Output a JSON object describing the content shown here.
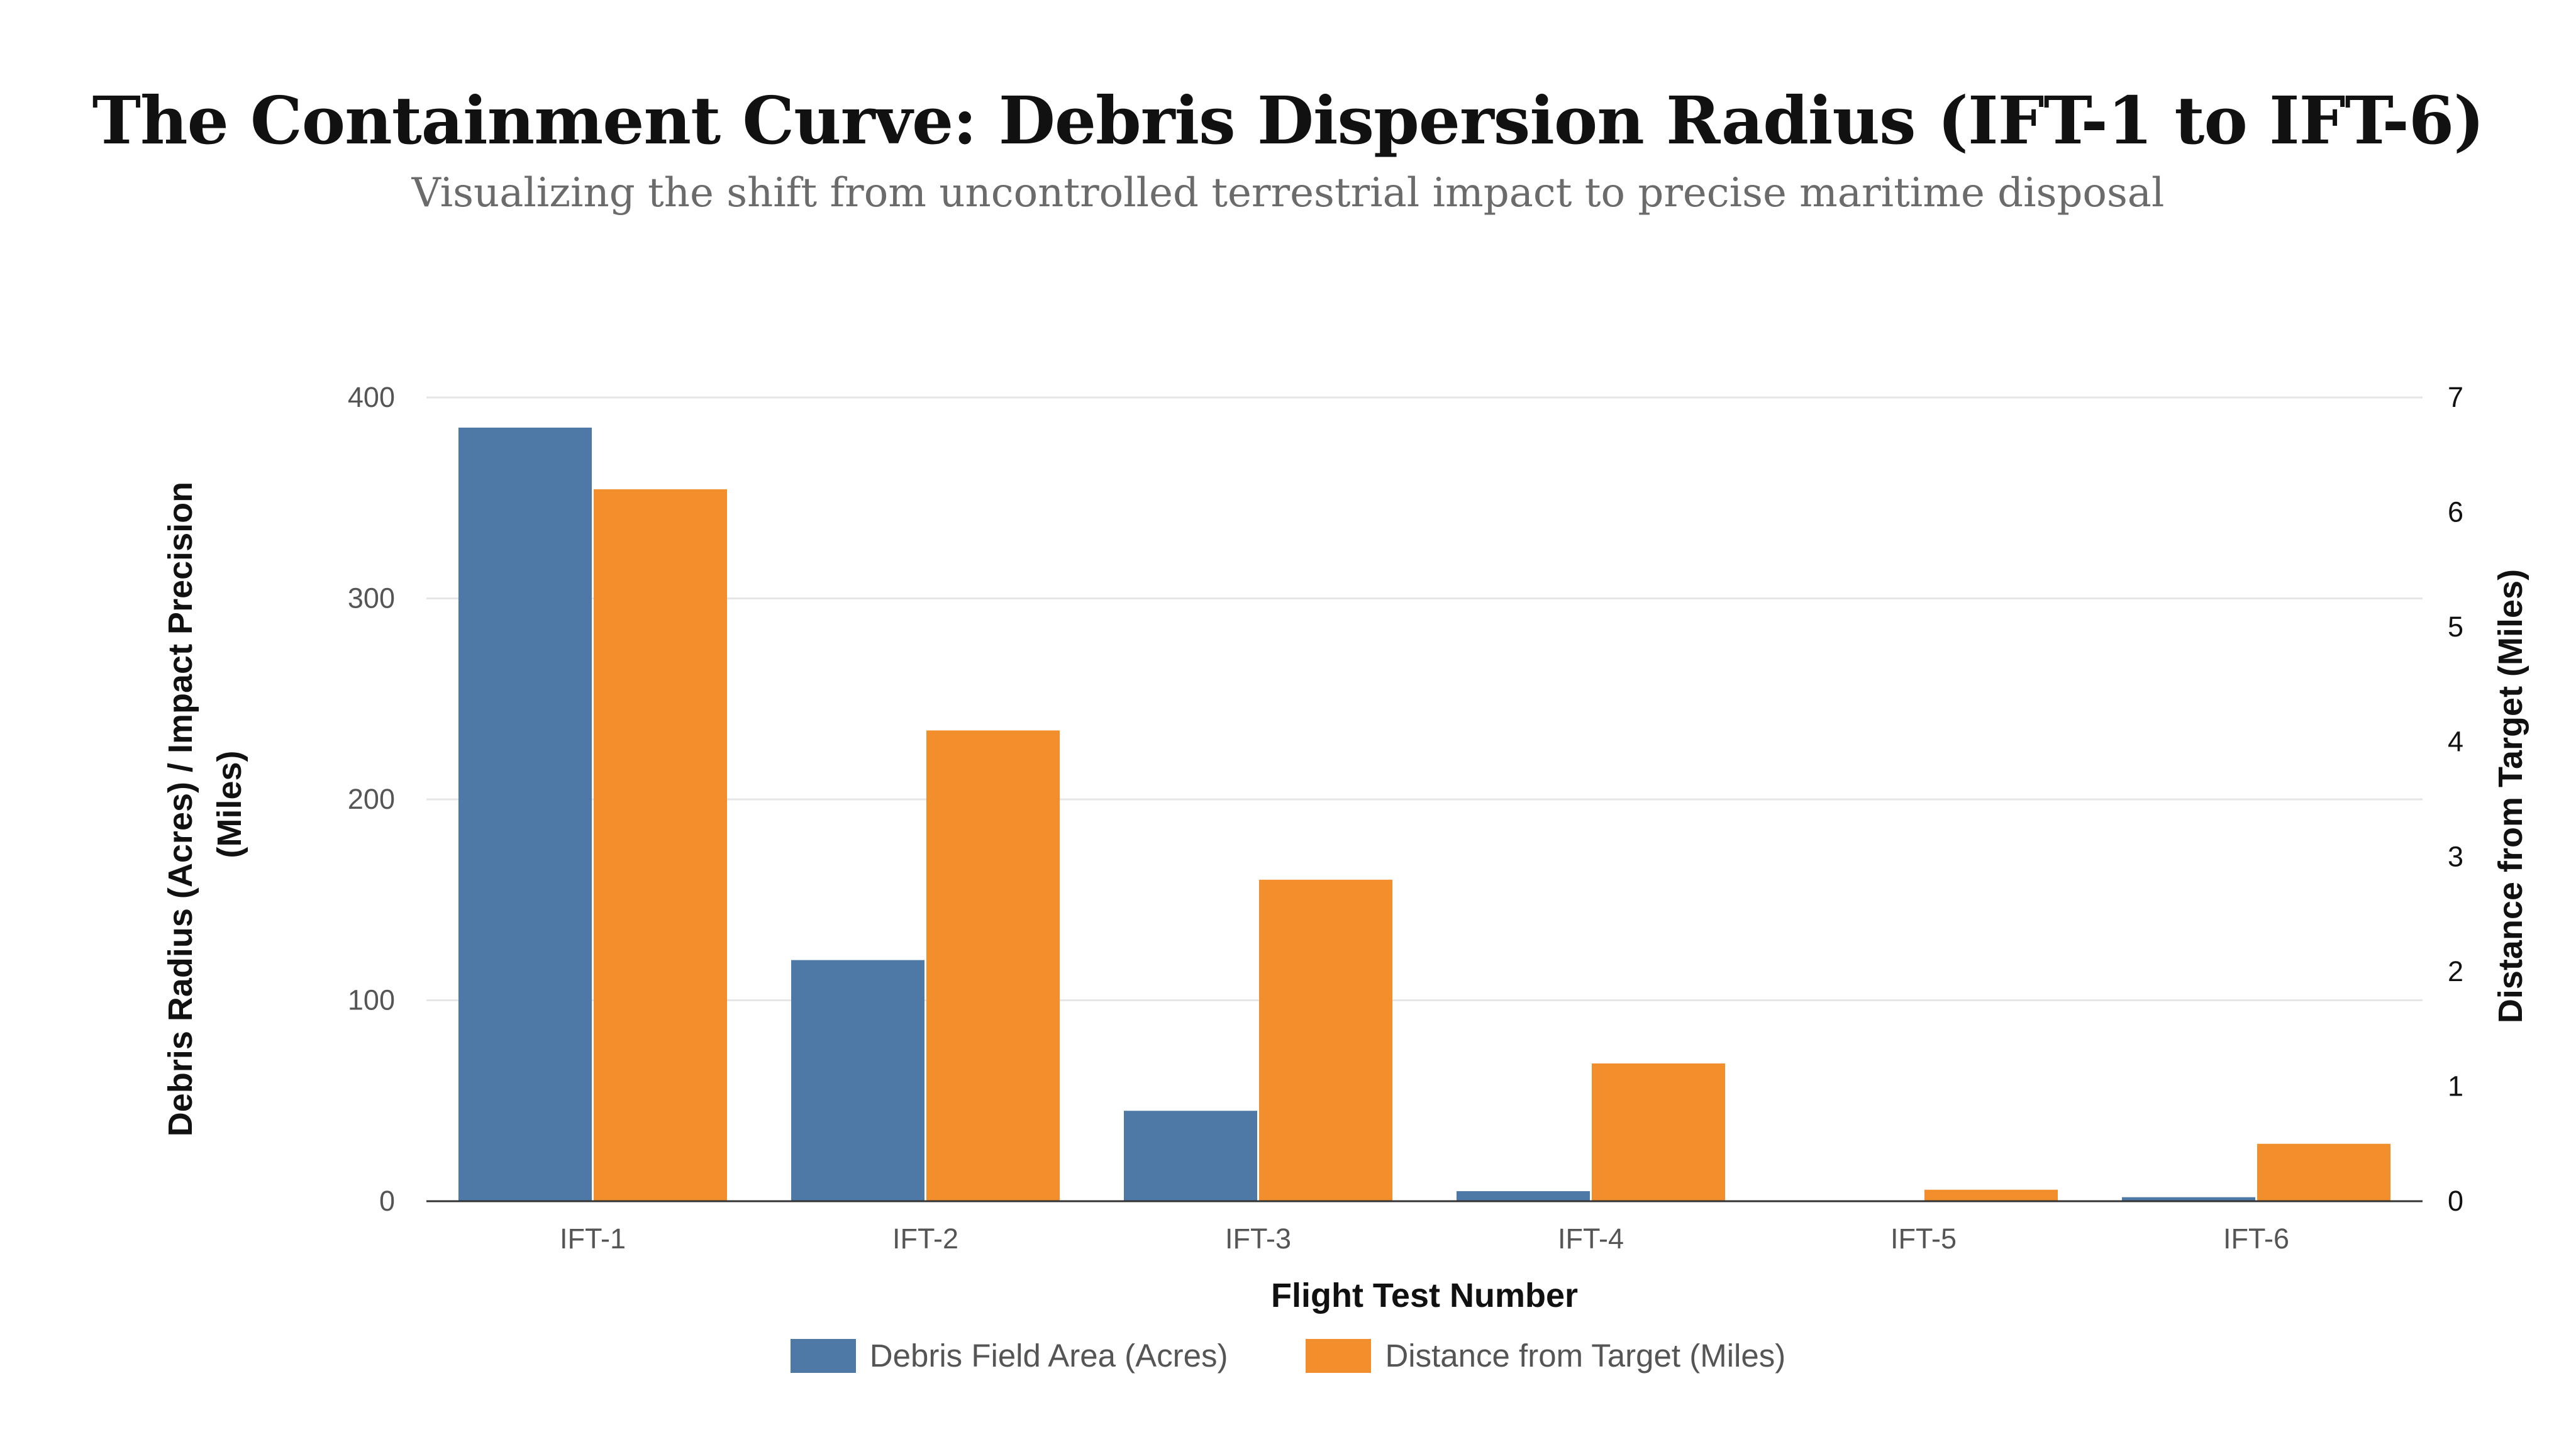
{
  "title": "The Containment Curve: Debris Dispersion Radius (IFT-1 to IFT-6)",
  "subtitle": "Visualizing the shift from uncontrolled terrestrial impact to precise maritime disposal",
  "chart_data": {
    "type": "bar",
    "categories": [
      "IFT-1",
      "IFT-2",
      "IFT-3",
      "IFT-4",
      "IFT-5",
      "IFT-6"
    ],
    "series": [
      {
        "name": "Debris Field Area (Acres)",
        "axis": "left",
        "color": "#4e79a7",
        "values": [
          385,
          120,
          45,
          5,
          0,
          2
        ]
      },
      {
        "name": "Distance from Target (Miles)",
        "axis": "right",
        "color": "#f28e2b",
        "values": [
          6.2,
          4.1,
          2.8,
          1.2,
          0.1,
          0.5
        ]
      }
    ],
    "xlabel": "Flight Test Number",
    "ylabel_left": "Debris Radius (Acres) / Impact Precision (Miles)",
    "ylabel_right": "Distance from Target (Miles)",
    "ylim_left": [
      0,
      400
    ],
    "ylim_right": [
      0,
      7
    ],
    "yticks_left": [
      "0",
      "100",
      "200",
      "300",
      "400"
    ],
    "yticks_right": [
      "0",
      "1",
      "2",
      "3",
      "4",
      "5",
      "6",
      "7"
    ],
    "grid": true,
    "legend_position": "bottom-center"
  }
}
